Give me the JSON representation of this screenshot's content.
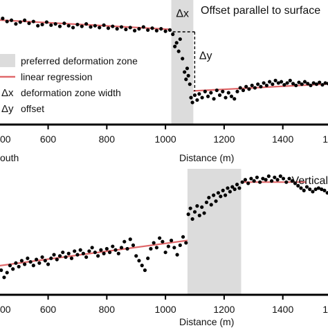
{
  "colors": {
    "zone_fill": "#dcdcdc",
    "regression": "#e0686a",
    "points": "#000000",
    "axis": "#000000"
  },
  "chart_data": [
    {
      "type": "scatter",
      "title": "Offset parallel to surface",
      "xlabel": "Distance (m)",
      "x_tick_labels": [
        "00",
        "600",
        "800",
        "1000",
        "1200",
        "1400",
        "1"
      ],
      "side_label": "outh",
      "xlim": [
        410,
        1580
      ],
      "ylim": [
        0,
        10
      ],
      "grid": false,
      "zone": [
        1020,
        1095
      ],
      "annotations": [
        {
          "text": "Δx",
          "x": 1058,
          "y": 9.05
        },
        {
          "text": "Δy",
          "x": 1115,
          "y": 5.6
        }
      ],
      "legend": {
        "placement": "left",
        "items": [
          {
            "symbol": "",
            "label": "preferred deformation zone",
            "kind": "zone"
          },
          {
            "symbol": "",
            "label": "linear regression",
            "kind": "line"
          },
          {
            "symbol": "Δx",
            "label": "deformation zone width",
            "kind": "text"
          },
          {
            "symbol": "Δy",
            "label": "offset",
            "kind": "text"
          }
        ]
      },
      "regressions": [
        {
          "x": [
            410,
            1020
          ],
          "y": [
            8.5,
            7.7
          ]
        },
        {
          "x": [
            1095,
            1580
          ],
          "y": [
            2.65,
            3.25
          ]
        }
      ],
      "points": [
        [
          410,
          8.55
        ],
        [
          430,
          8.5
        ],
        [
          445,
          8.6
        ],
        [
          460,
          8.35
        ],
        [
          475,
          8.45
        ],
        [
          490,
          8.15
        ],
        [
          505,
          8.3
        ],
        [
          520,
          8.45
        ],
        [
          535,
          8.2
        ],
        [
          550,
          8.35
        ],
        [
          565,
          8.0
        ],
        [
          580,
          8.1
        ],
        [
          595,
          8.3
        ],
        [
          610,
          8.05
        ],
        [
          625,
          8.15
        ],
        [
          640,
          7.95
        ],
        [
          655,
          8.2
        ],
        [
          670,
          8.0
        ],
        [
          685,
          7.85
        ],
        [
          700,
          8.1
        ],
        [
          715,
          7.95
        ],
        [
          730,
          8.15
        ],
        [
          745,
          7.9
        ],
        [
          760,
          8.0
        ],
        [
          775,
          7.85
        ],
        [
          790,
          8.05
        ],
        [
          805,
          7.8
        ],
        [
          820,
          7.95
        ],
        [
          835,
          7.75
        ],
        [
          850,
          7.9
        ],
        [
          865,
          7.7
        ],
        [
          880,
          7.85
        ],
        [
          895,
          7.6
        ],
        [
          910,
          7.75
        ],
        [
          925,
          7.9
        ],
        [
          940,
          7.65
        ],
        [
          955,
          7.8
        ],
        [
          970,
          7.6
        ],
        [
          985,
          7.75
        ],
        [
          1000,
          7.55
        ],
        [
          1015,
          7.65
        ],
        [
          1025,
          7.3
        ],
        [
          1032,
          6.3
        ],
        [
          1038,
          6.6
        ],
        [
          1045,
          5.9
        ],
        [
          1050,
          6.9
        ],
        [
          1058,
          5.3
        ],
        [
          1065,
          4.2
        ],
        [
          1070,
          3.6
        ],
        [
          1074,
          4.5
        ],
        [
          1078,
          3.9
        ],
        [
          1083,
          3.2
        ],
        [
          1087,
          2.1
        ],
        [
          1092,
          1.7
        ],
        [
          1100,
          2.3
        ],
        [
          1108,
          1.9
        ],
        [
          1115,
          2.4
        ],
        [
          1125,
          2.1
        ],
        [
          1135,
          2.6
        ],
        [
          1145,
          2.2
        ],
        [
          1155,
          2.5
        ],
        [
          1165,
          2.0
        ],
        [
          1175,
          2.7
        ],
        [
          1185,
          2.3
        ],
        [
          1195,
          2.6
        ],
        [
          1205,
          2.1
        ],
        [
          1215,
          2.5
        ],
        [
          1225,
          2.2
        ],
        [
          1235,
          2.0
        ],
        [
          1245,
          2.6
        ],
        [
          1255,
          2.9
        ],
        [
          1265,
          2.7
        ],
        [
          1275,
          3.0
        ],
        [
          1285,
          2.8
        ],
        [
          1295,
          3.1
        ],
        [
          1305,
          2.9
        ],
        [
          1315,
          3.2
        ],
        [
          1325,
          3.0
        ],
        [
          1335,
          3.3
        ],
        [
          1345,
          3.1
        ],
        [
          1355,
          3.4
        ],
        [
          1365,
          3.2
        ],
        [
          1375,
          3.5
        ],
        [
          1385,
          3.3
        ],
        [
          1395,
          3.4
        ],
        [
          1405,
          3.15
        ],
        [
          1415,
          3.3
        ],
        [
          1425,
          3.5
        ],
        [
          1435,
          3.25
        ],
        [
          1445,
          3.1
        ],
        [
          1455,
          3.35
        ],
        [
          1465,
          3.2
        ],
        [
          1475,
          3.4
        ],
        [
          1485,
          3.25
        ],
        [
          1495,
          3.1
        ],
        [
          1505,
          3.3
        ],
        [
          1515,
          3.2
        ],
        [
          1525,
          3.35
        ],
        [
          1535,
          3.15
        ],
        [
          1545,
          3.3
        ],
        [
          1555,
          3.25
        ],
        [
          1565,
          3.2
        ],
        [
          1575,
          3.3
        ]
      ]
    },
    {
      "type": "scatter",
      "title": "Vertical",
      "xlabel": "Distance (m)",
      "x_tick_labels": [
        "00",
        "600",
        "800",
        "1000",
        "1200",
        "1400",
        "1"
      ],
      "xlim": [
        410,
        1580
      ],
      "ylim": [
        0,
        10
      ],
      "grid": false,
      "zone": [
        1075,
        1258
      ],
      "regressions": [
        {
          "x": [
            410,
            1075
          ],
          "y": [
            1.9,
            4.1
          ]
        },
        {
          "x": [
            1258,
            1480
          ],
          "y": [
            9.0,
            9.0
          ]
        }
      ],
      "points": [
        [
          410,
          1.5
        ],
        [
          420,
          1.8
        ],
        [
          430,
          1.2
        ],
        [
          440,
          1.6
        ],
        [
          450,
          1.0
        ],
        [
          460,
          1.4
        ],
        [
          470,
          2.0
        ],
        [
          480,
          1.7
        ],
        [
          490,
          2.2
        ],
        [
          500,
          1.9
        ],
        [
          510,
          2.4
        ],
        [
          520,
          2.1
        ],
        [
          530,
          2.6
        ],
        [
          540,
          2.3
        ],
        [
          550,
          2.0
        ],
        [
          560,
          2.5
        ],
        [
          570,
          2.2
        ],
        [
          580,
          2.7
        ],
        [
          590,
          2.4
        ],
        [
          600,
          2.1
        ],
        [
          610,
          2.6
        ],
        [
          620,
          2.9
        ],
        [
          630,
          2.5
        ],
        [
          640,
          2.8
        ],
        [
          650,
          3.1
        ],
        [
          660,
          2.7
        ],
        [
          670,
          3.0
        ],
        [
          680,
          2.6
        ],
        [
          690,
          3.2
        ],
        [
          700,
          2.9
        ],
        [
          710,
          3.3
        ],
        [
          720,
          3.0
        ],
        [
          730,
          2.7
        ],
        [
          740,
          3.2
        ],
        [
          750,
          3.5
        ],
        [
          760,
          3.1
        ],
        [
          770,
          2.8
        ],
        [
          780,
          3.3
        ],
        [
          790,
          3.0
        ],
        [
          800,
          3.4
        ],
        [
          810,
          3.1
        ],
        [
          820,
          3.6
        ],
        [
          830,
          3.3
        ],
        [
          840,
          3.0
        ],
        [
          850,
          3.5
        ],
        [
          860,
          4.0
        ],
        [
          870,
          3.4
        ],
        [
          880,
          4.2
        ],
        [
          890,
          3.7
        ],
        [
          900,
          2.8
        ],
        [
          910,
          2.4
        ],
        [
          920,
          2.0
        ],
        [
          930,
          1.6
        ],
        [
          940,
          2.6
        ],
        [
          950,
          3.4
        ],
        [
          960,
          3.9
        ],
        [
          970,
          3.5
        ],
        [
          980,
          4.3
        ],
        [
          990,
          4.0
        ],
        [
          1000,
          3.1
        ],
        [
          1010,
          3.6
        ],
        [
          1020,
          4.1
        ],
        [
          1030,
          3.5
        ],
        [
          1040,
          2.9
        ],
        [
          1050,
          3.7
        ],
        [
          1060,
          4.4
        ],
        [
          1070,
          3.9
        ],
        [
          1078,
          6.3
        ],
        [
          1085,
          6.8
        ],
        [
          1092,
          5.9
        ],
        [
          1100,
          6.5
        ],
        [
          1108,
          7.0
        ],
        [
          1116,
          6.2
        ],
        [
          1124,
          6.9
        ],
        [
          1132,
          6.4
        ],
        [
          1140,
          7.3
        ],
        [
          1148,
          7.7
        ],
        [
          1156,
          7.1
        ],
        [
          1164,
          7.9
        ],
        [
          1172,
          7.4
        ],
        [
          1180,
          8.1
        ],
        [
          1188,
          7.8
        ],
        [
          1196,
          8.3
        ],
        [
          1204,
          7.9
        ],
        [
          1212,
          8.5
        ],
        [
          1220,
          8.2
        ],
        [
          1228,
          8.6
        ],
        [
          1236,
          8.4
        ],
        [
          1244,
          8.8
        ],
        [
          1252,
          8.5
        ],
        [
          1262,
          9.0
        ],
        [
          1272,
          9.2
        ],
        [
          1282,
          8.9
        ],
        [
          1292,
          9.3
        ],
        [
          1302,
          9.1
        ],
        [
          1312,
          9.4
        ],
        [
          1322,
          9.0
        ],
        [
          1332,
          9.3
        ],
        [
          1342,
          9.2
        ],
        [
          1352,
          9.5
        ],
        [
          1362,
          9.1
        ],
        [
          1372,
          9.4
        ],
        [
          1382,
          9.2
        ],
        [
          1392,
          9.5
        ],
        [
          1402,
          9.3
        ],
        [
          1412,
          9.0
        ],
        [
          1422,
          9.3
        ],
        [
          1432,
          9.1
        ],
        [
          1442,
          8.9
        ],
        [
          1452,
          8.7
        ],
        [
          1462,
          8.5
        ],
        [
          1472,
          8.3
        ],
        [
          1482,
          8.6
        ],
        [
          1492,
          8.4
        ],
        [
          1502,
          8.2
        ],
        [
          1512,
          8.4
        ],
        [
          1522,
          8.5
        ],
        [
          1532,
          8.4
        ],
        [
          1542,
          8.3
        ],
        [
          1552,
          8.1
        ],
        [
          1560,
          7.6
        ],
        [
          1568,
          7.1
        ],
        [
          1576,
          6.6
        ]
      ]
    }
  ]
}
